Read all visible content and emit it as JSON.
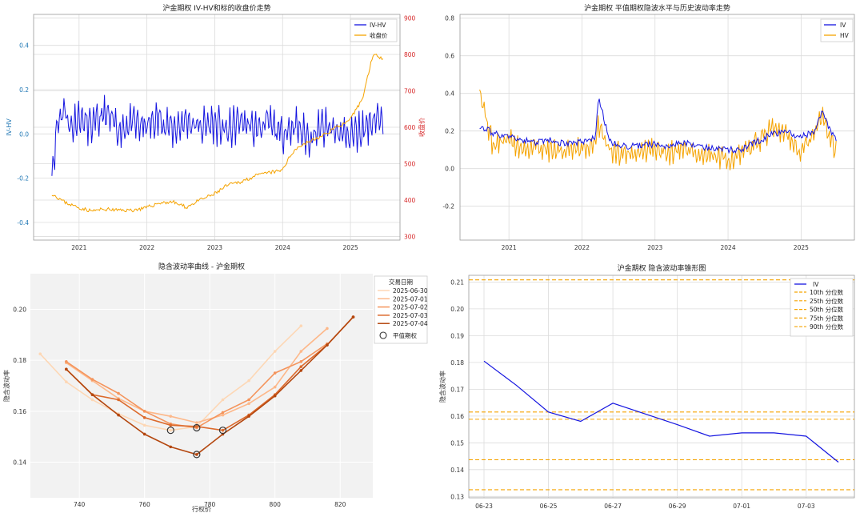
{
  "chart_data": [
    {
      "type": "line",
      "title": "沪金期权 IV-HV和标的收盘价走势",
      "ylabel": "IV-HV",
      "y2label": "收盘价",
      "xticks": [
        "2021",
        "2022",
        "2023",
        "2024",
        "2025"
      ],
      "ylim": [
        -0.48,
        0.54
      ],
      "yticks": [
        "-0.4",
        "-0.2",
        "0.0",
        "0.2",
        "0.4"
      ],
      "y2lim": [
        290,
        910
      ],
      "y2ticks": [
        "300",
        "400",
        "500",
        "600",
        "700",
        "800",
        "900"
      ],
      "legend": [
        "IV-HV",
        "收盘价"
      ],
      "legend_position": "top-right",
      "grid": true,
      "colors": {
        "iv_hv": "#1515e0",
        "close": "#f5a300",
        "y2axis": "#d62728",
        "yaxis": "#1f77b4"
      },
      "series": [
        {
          "name": "IV-HV",
          "x": [
            2020.62,
            2020.7,
            2020.8,
            2020.9,
            2021.0,
            2021.2,
            2021.4,
            2021.6,
            2021.8,
            2022.0,
            2022.2,
            2022.4,
            2022.6,
            2022.8,
            2023.0,
            2023.2,
            2023.4,
            2023.6,
            2023.8,
            2024.0,
            2024.2,
            2024.4,
            2024.6,
            2024.8,
            2025.0,
            2025.2,
            2025.4,
            2025.5
          ],
          "values": [
            -0.19,
            0.05,
            0.12,
            0.02,
            0.08,
            0.03,
            0.09,
            0.02,
            0.05,
            0.03,
            0.07,
            0.02,
            0.06,
            0.03,
            0.05,
            0.01,
            0.06,
            0.02,
            0.05,
            0.0,
            0.04,
            -0.02,
            0.03,
            0.01,
            -0.01,
            0.02,
            0.08,
            0.03
          ]
        },
        {
          "name": "收盘价",
          "x": [
            2020.62,
            2020.8,
            2021.0,
            2021.2,
            2021.4,
            2021.6,
            2021.8,
            2022.0,
            2022.2,
            2022.4,
            2022.6,
            2022.8,
            2023.0,
            2023.2,
            2023.4,
            2023.6,
            2023.8,
            2024.0,
            2024.2,
            2024.4,
            2024.6,
            2024.8,
            2025.0,
            2025.2,
            2025.35,
            2025.5
          ],
          "values": [
            418,
            395,
            380,
            370,
            375,
            372,
            372,
            378,
            392,
            395,
            380,
            400,
            415,
            440,
            450,
            465,
            475,
            480,
            540,
            560,
            575,
            600,
            615,
            680,
            800,
            790
          ]
        }
      ]
    },
    {
      "type": "line",
      "title": "沪金期权 平值期权隐波水平与历史波动率走势",
      "xticks": [
        "2021",
        "2022",
        "2023",
        "2024",
        "2025"
      ],
      "ylim": [
        -0.38,
        0.82
      ],
      "yticks": [
        "-0.2",
        "0.0",
        "0.2",
        "0.4",
        "0.6",
        "0.8"
      ],
      "legend": [
        "IV",
        "HV"
      ],
      "legend_position": "top-right",
      "grid": true,
      "colors": {
        "iv": "#1515e0",
        "hv": "#f5a300"
      },
      "series": [
        {
          "name": "IV",
          "x": [
            2020.62,
            2020.8,
            2021.0,
            2021.2,
            2021.4,
            2021.6,
            2021.8,
            2022.0,
            2022.2,
            2022.25,
            2022.4,
            2022.6,
            2022.8,
            2023.0,
            2023.2,
            2023.4,
            2023.6,
            2023.8,
            2024.0,
            2024.2,
            2024.4,
            2024.6,
            2024.8,
            2025.0,
            2025.2,
            2025.3,
            2025.5
          ],
          "values": [
            0.23,
            0.19,
            0.17,
            0.15,
            0.14,
            0.15,
            0.13,
            0.14,
            0.16,
            0.38,
            0.14,
            0.12,
            0.12,
            0.13,
            0.12,
            0.14,
            0.12,
            0.11,
            0.1,
            0.1,
            0.14,
            0.18,
            0.2,
            0.17,
            0.19,
            0.3,
            0.15
          ]
        },
        {
          "name": "HV",
          "x": [
            2020.62,
            2020.8,
            2021.0,
            2021.2,
            2021.4,
            2021.6,
            2021.8,
            2022.0,
            2022.2,
            2022.25,
            2022.4,
            2022.6,
            2022.8,
            2023.0,
            2023.2,
            2023.4,
            2023.6,
            2023.8,
            2024.0,
            2024.2,
            2024.4,
            2024.6,
            2024.8,
            2025.0,
            2025.2,
            2025.3,
            2025.5
          ],
          "values": [
            0.42,
            0.12,
            0.16,
            0.1,
            0.12,
            0.1,
            0.09,
            0.1,
            0.12,
            0.24,
            0.1,
            0.08,
            0.09,
            0.1,
            0.08,
            0.12,
            0.07,
            0.06,
            0.05,
            0.07,
            0.14,
            0.2,
            0.21,
            0.08,
            0.18,
            0.28,
            0.1
          ]
        }
      ]
    },
    {
      "type": "line",
      "title": "隐含波动率曲线 - 沪金期权",
      "xlabel": "行权价",
      "ylabel": "隐含波动率",
      "xlim": [
        725,
        830
      ],
      "ylim": [
        0.126,
        0.214
      ],
      "xticks": [
        "740",
        "760",
        "780",
        "800",
        "820"
      ],
      "yticks": [
        "0.14",
        "0.16",
        "0.18",
        "0.20"
      ],
      "legend_title": "交易日期",
      "legend_position": "right",
      "grid": true,
      "series": [
        {
          "name": "2025-06-30",
          "color": "#fdd7b5",
          "x": [
            728,
            736,
            744,
            752,
            760,
            768,
            776,
            784,
            792,
            800,
            808
          ],
          "values": [
            0.1825,
            0.1715,
            0.1645,
            0.159,
            0.1545,
            0.1525,
            0.154,
            0.1645,
            0.172,
            0.1835,
            0.1935
          ]
        },
        {
          "name": "2025-07-01",
          "color": "#fdb88a",
          "x": [
            736,
            744,
            752,
            760,
            768,
            776,
            784,
            792,
            800,
            808,
            816
          ],
          "values": [
            0.179,
            0.172,
            0.165,
            0.16,
            0.158,
            0.1555,
            0.1585,
            0.163,
            0.1695,
            0.1835,
            0.1925
          ]
        },
        {
          "name": "2025-07-02",
          "color": "#f4945c",
          "x": [
            736,
            744,
            752,
            760,
            768,
            776,
            784,
            792,
            800,
            808,
            816
          ],
          "values": [
            0.1795,
            0.1725,
            0.167,
            0.16,
            0.155,
            0.1535,
            0.1595,
            0.1645,
            0.175,
            0.1795,
            0.1865
          ]
        },
        {
          "name": "2025-07-03",
          "color": "#dc6a2c",
          "x": [
            736,
            744,
            752,
            760,
            768,
            776,
            784,
            792,
            800,
            808,
            816,
            824
          ],
          "values": [
            0.1765,
            0.1665,
            0.1645,
            0.1575,
            0.1545,
            0.154,
            0.1525,
            0.1585,
            0.1665,
            0.1775,
            0.186,
            0.197
          ]
        },
        {
          "name": "2025-07-04",
          "color": "#b4470f",
          "x": [
            736,
            744,
            752,
            760,
            768,
            776,
            784,
            792,
            800,
            808,
            816,
            824
          ],
          "values": [
            0.1765,
            0.1665,
            0.1585,
            0.151,
            0.146,
            0.143,
            0.151,
            0.158,
            0.166,
            0.176,
            0.186,
            0.197
          ]
        }
      ],
      "atm_label": "平值期权",
      "atm_points": [
        {
          "x": 768,
          "y": 0.1525
        },
        {
          "x": 776,
          "y": 0.1535
        },
        {
          "x": 784,
          "y": 0.1525
        },
        {
          "x": 776,
          "y": 0.143
        }
      ]
    },
    {
      "type": "line",
      "title": "沪金期权 隐含波动率锥形图",
      "ylabel": "隐含波动率",
      "xlabels": [
        "06-23",
        "06-25",
        "06-27",
        "06-29",
        "07-01",
        "07-03"
      ],
      "ylim": [
        0.1295,
        0.2125
      ],
      "yticks": [
        "0.13",
        "0.14",
        "0.15",
        "0.16",
        "0.17",
        "0.18",
        "0.19",
        "0.20",
        "0.21"
      ],
      "legend_position": "top-right",
      "grid": true,
      "series": [
        {
          "name": "IV",
          "color": "#1515e0",
          "x": [
            0,
            1,
            2,
            3,
            4,
            5,
            6,
            7,
            8,
            9,
            10,
            11
          ],
          "values": [
            0.1805,
            0.1715,
            0.1615,
            0.158,
            0.1648,
            0.1608,
            0.1568,
            0.1525,
            0.1537,
            0.1537,
            0.1525,
            0.1428
          ]
        }
      ],
      "percentiles": [
        {
          "name": "10th 分位数",
          "value": 0.1325
        },
        {
          "name": "25th 分位数",
          "value": 0.1437
        },
        {
          "name": "50th 分位数",
          "value": 0.1588
        },
        {
          "name": "75th 分位数",
          "value": 0.1615
        },
        {
          "name": "90th 分位数",
          "value": 0.2108
        }
      ],
      "percentile_color": "#f5a300"
    }
  ]
}
